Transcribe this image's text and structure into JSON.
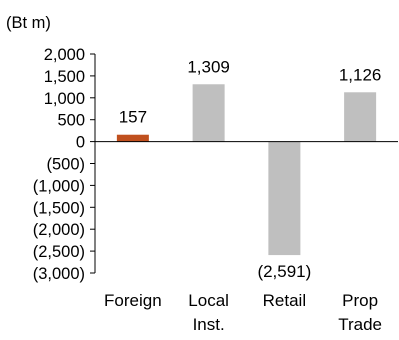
{
  "chart_data": {
    "type": "bar",
    "unit_label": "(Bt m)",
    "categories": [
      [
        "Foreign"
      ],
      [
        "Local",
        "Inst."
      ],
      [
        "Retail"
      ],
      [
        "Prop",
        "Trade"
      ]
    ],
    "values": [
      157,
      1309,
      -2591,
      1126
    ],
    "data_labels": [
      "157",
      "1,309",
      "(2,591)",
      "1,126"
    ],
    "bar_colors": [
      "#C0501E",
      "#BFBFBF",
      "#BFBFBF",
      "#BFBFBF"
    ],
    "y_ticks": [
      2000,
      1500,
      1000,
      500,
      0,
      -500,
      -1000,
      -1500,
      -2000,
      -2500,
      -3000
    ],
    "y_tick_labels": [
      "2,000",
      "1,500",
      "1,000",
      "500",
      "0",
      "(500)",
      "(1,000)",
      "(1,500)",
      "(2,000)",
      "(2,500)",
      "(3,000)"
    ],
    "ylim": [
      -3000,
      2000
    ],
    "grid": false,
    "legend": "none"
  }
}
